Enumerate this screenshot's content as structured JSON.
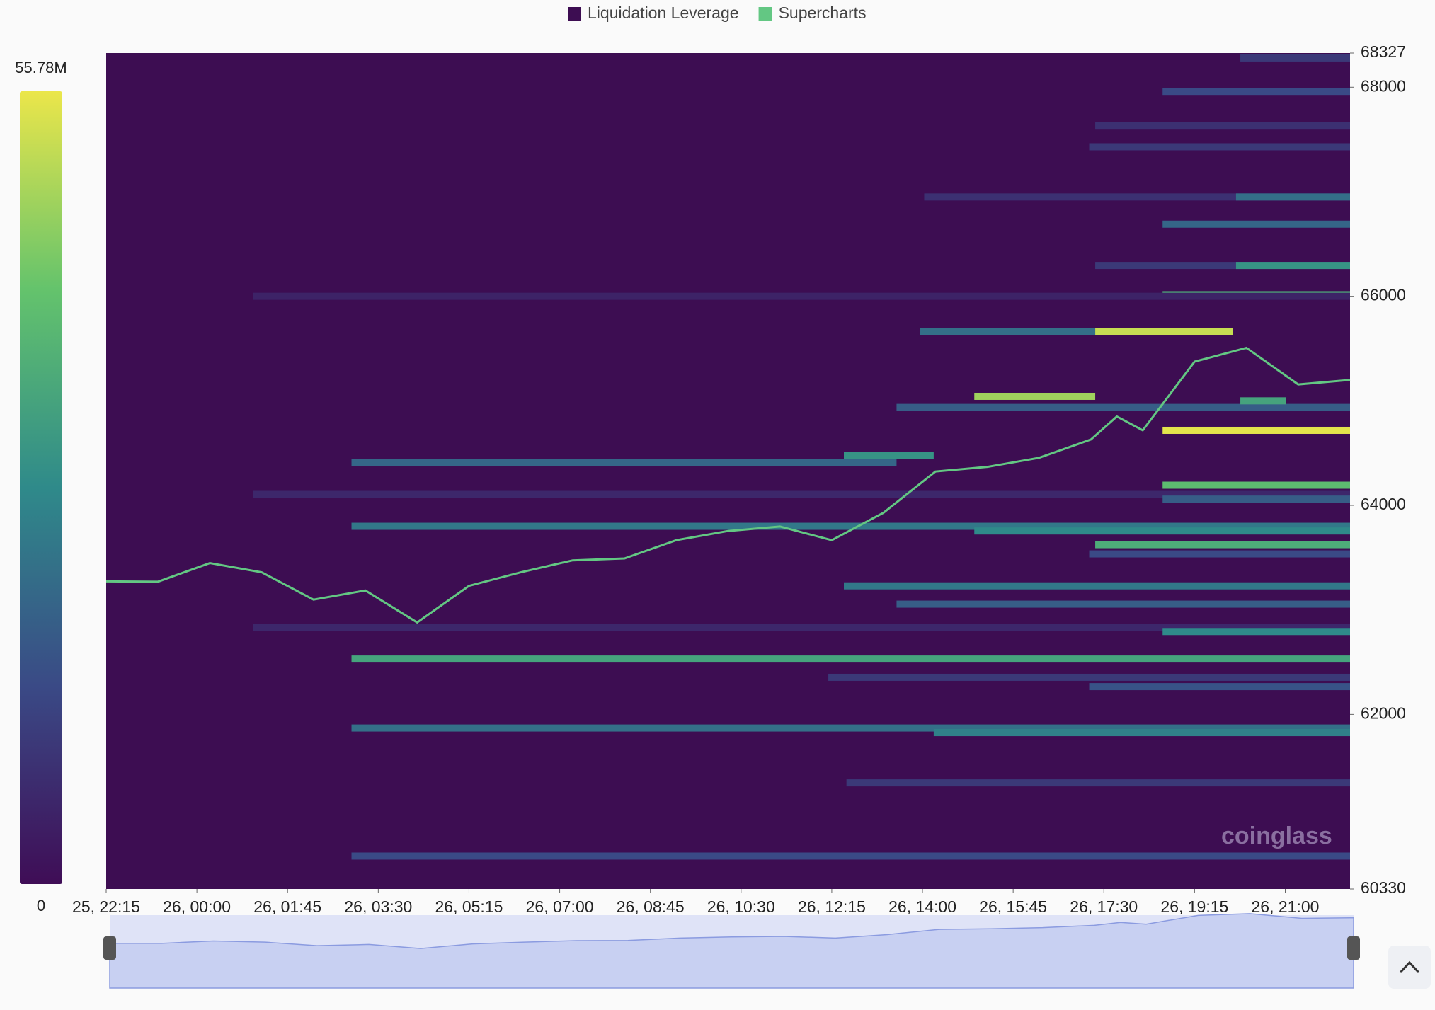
{
  "chart_data": {
    "type": "heatmap",
    "xlim": [
      0,
      1440
    ],
    "xticks": [
      {
        "value": 0,
        "label": "25, 22:15"
      },
      {
        "value": 105,
        "label": "26, 00:00"
      },
      {
        "value": 210,
        "label": "26, 01:45"
      },
      {
        "value": 315,
        "label": "26, 03:30"
      },
      {
        "value": 420,
        "label": "26, 05:15"
      },
      {
        "value": 525,
        "label": "26, 07:00"
      },
      {
        "value": 630,
        "label": "26, 08:45"
      },
      {
        "value": 735,
        "label": "26, 10:30"
      },
      {
        "value": 840,
        "label": "26, 12:15"
      },
      {
        "value": 945,
        "label": "26, 14:00"
      },
      {
        "value": 1050,
        "label": "26, 15:45"
      },
      {
        "value": 1155,
        "label": "26, 17:30"
      },
      {
        "value": 1260,
        "label": "26, 19:15"
      },
      {
        "value": 1365,
        "label": "26, 21:00"
      }
    ],
    "ylim": [
      60330,
      68327
    ],
    "yticks": [
      60330,
      62000,
      64000,
      66000,
      68000,
      68327
    ],
    "colorbar": {
      "min": 0,
      "max": {
        "value": 55.78,
        "label": "55.78M"
      },
      "colors": [
        "#3f0d56",
        "#3a4a86",
        "#2f8a8a",
        "#64c36c",
        "#ebe64a"
      ]
    },
    "legend": [
      {
        "name": "Liquidation Leverage",
        "color": "#3d0d52"
      },
      {
        "name": "Supercharts",
        "color": "#63c783"
      }
    ],
    "background": "#3d0d52",
    "watermark": "coinglass",
    "price": {
      "color": "#63c783",
      "x": [
        0,
        60,
        120,
        180,
        240,
        300,
        360,
        420,
        480,
        540,
        600,
        660,
        720,
        780,
        840,
        900,
        960,
        1020,
        1080,
        1140,
        1170,
        1200,
        1260,
        1320,
        1380,
        1440
      ],
      "values": [
        63273,
        63270,
        63448,
        63360,
        63098,
        63186,
        62880,
        63230,
        63360,
        63474,
        63492,
        63667,
        63755,
        63798,
        63667,
        63930,
        64324,
        64368,
        64455,
        64630,
        64850,
        64718,
        65375,
        65507,
        65157,
        65200
      ]
    },
    "bands": [
      {
        "y": 68280,
        "x": 1313,
        "x2": 1440,
        "value": 10
      },
      {
        "y": 67960,
        "x": 1223,
        "x2": 1440,
        "value": 14
      },
      {
        "y": 67635,
        "x": 1145,
        "x2": 1440,
        "value": 8
      },
      {
        "y": 67430,
        "x": 1138,
        "x2": 1440,
        "value": 10
      },
      {
        "y": 66950,
        "x": 947,
        "x2": 1440,
        "value": 8
      },
      {
        "y": 66950,
        "x": 1308,
        "x2": 1440,
        "value": 22
      },
      {
        "y": 66690,
        "x": 1223,
        "x2": 1440,
        "value": 20
      },
      {
        "y": 66295,
        "x": 1145,
        "x2": 1440,
        "value": 10
      },
      {
        "y": 66295,
        "x": 1308,
        "x2": 1440,
        "value": 30
      },
      {
        "y": 66015,
        "x": 1223,
        "x2": 1440,
        "value": 36
      },
      {
        "y": 66000,
        "x": 170,
        "x2": 1440,
        "value": 5
      },
      {
        "y": 65665,
        "x": 942,
        "x2": 1145,
        "value": 22
      },
      {
        "y": 65665,
        "x": 1145,
        "x2": 1304,
        "value": 52
      },
      {
        "y": 65043,
        "x": 1005,
        "x2": 1145,
        "value": 48
      },
      {
        "y": 64937,
        "x": 915,
        "x2": 1440,
        "value": 18
      },
      {
        "y": 65000,
        "x": 1313,
        "x2": 1366,
        "value": 34
      },
      {
        "y": 64718,
        "x": 1223,
        "x2": 1440,
        "value": 55
      },
      {
        "y": 64410,
        "x": 284,
        "x2": 915,
        "value": 20
      },
      {
        "y": 64480,
        "x": 854,
        "x2": 958,
        "value": 30
      },
      {
        "y": 64193,
        "x": 1223,
        "x2": 1440,
        "value": 40
      },
      {
        "y": 64105,
        "x": 170,
        "x2": 1440,
        "value": 6
      },
      {
        "y": 64060,
        "x": 1223,
        "x2": 1440,
        "value": 18
      },
      {
        "y": 63800,
        "x": 284,
        "x2": 1440,
        "value": 24
      },
      {
        "y": 63755,
        "x": 1005,
        "x2": 1440,
        "value": 28
      },
      {
        "y": 63624,
        "x": 1145,
        "x2": 1440,
        "value": 36
      },
      {
        "y": 63536,
        "x": 1138,
        "x2": 1440,
        "value": 14
      },
      {
        "y": 63230,
        "x": 854,
        "x2": 1440,
        "value": 24
      },
      {
        "y": 63055,
        "x": 915,
        "x2": 1440,
        "value": 18
      },
      {
        "y": 62835,
        "x": 170,
        "x2": 1440,
        "value": 6
      },
      {
        "y": 62793,
        "x": 1223,
        "x2": 1440,
        "value": 28
      },
      {
        "y": 62530,
        "x": 284,
        "x2": 1440,
        "value": 34
      },
      {
        "y": 62355,
        "x": 836,
        "x2": 1440,
        "value": 10
      },
      {
        "y": 62266,
        "x": 1138,
        "x2": 1440,
        "value": 16
      },
      {
        "y": 61870,
        "x": 284,
        "x2": 1440,
        "value": 22
      },
      {
        "y": 61826,
        "x": 958,
        "x2": 1440,
        "value": 26
      },
      {
        "y": 61345,
        "x": 857,
        "x2": 1440,
        "value": 10
      },
      {
        "y": 60645,
        "x": 284,
        "x2": 1440,
        "value": 14
      }
    ]
  }
}
